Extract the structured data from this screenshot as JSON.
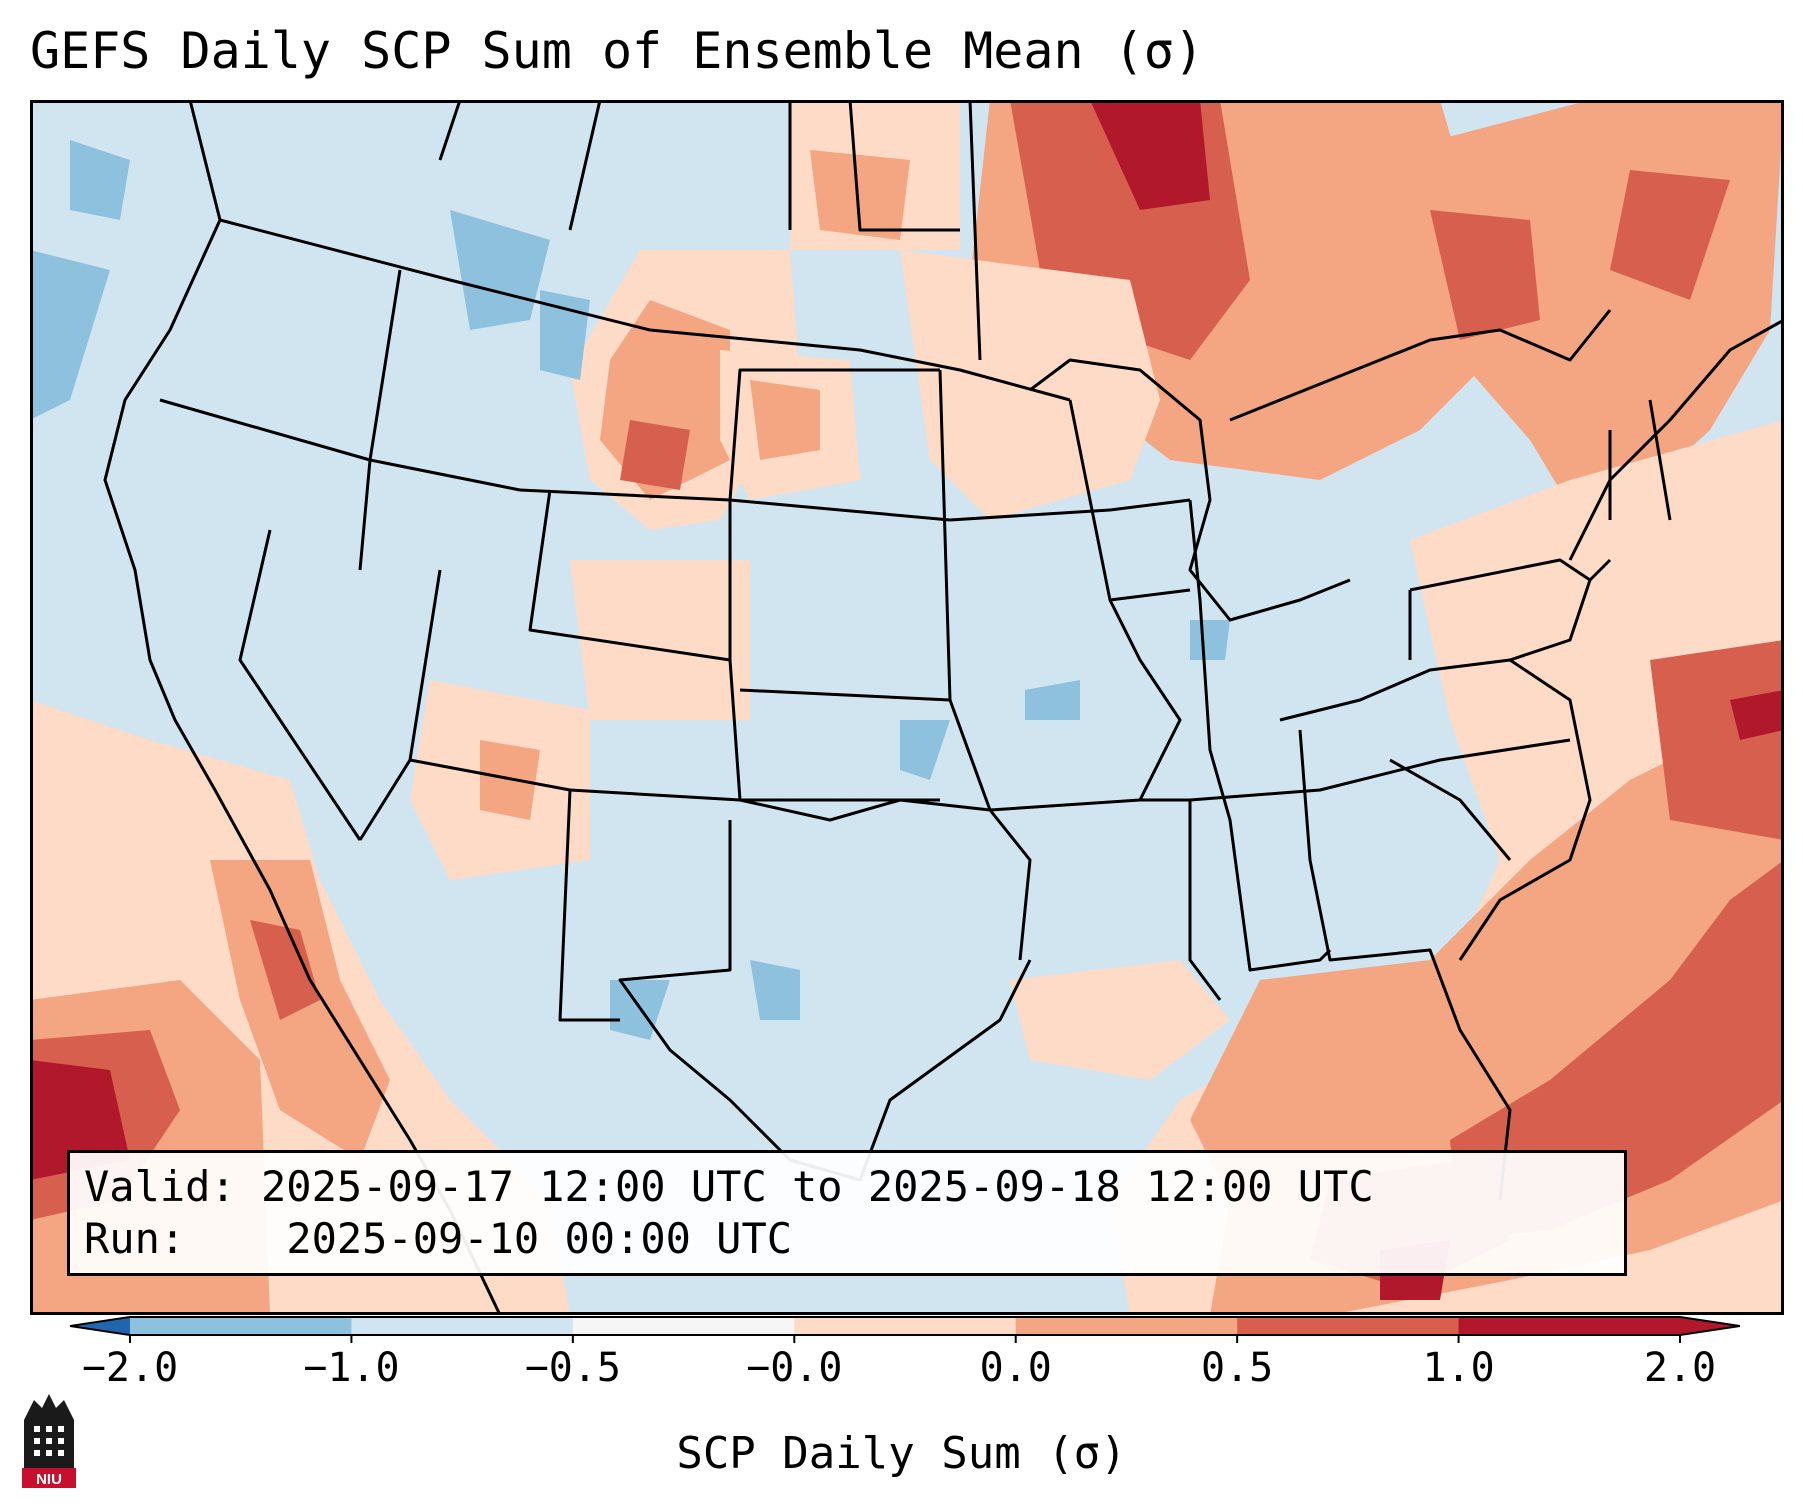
{
  "title": "GEFS Daily SCP Sum of Ensemble Mean (σ)",
  "info": {
    "valid_label": "Valid:",
    "valid_value": "2025-09-17 12:00 UTC to 2025-09-18 12:00 UTC",
    "run_label": "Run:",
    "run_value": "2025-09-10 00:00 UTC"
  },
  "colorbar": {
    "label": "SCP Daily Sum (σ)",
    "ticks": [
      "−2.0",
      "−1.0",
      "−0.5",
      "−0.0",
      "0.0",
      "0.5",
      "1.0",
      "2.0"
    ],
    "colors": [
      "#3b7fbe",
      "#8ec1de",
      "#d1e5f0",
      "#f6f6f6",
      "#fddbc7",
      "#f4a582",
      "#d6604d",
      "#b2182b"
    ],
    "under_color": "#2166ac",
    "over_color": "#b2182b"
  },
  "map": {
    "projection": "conus-lambert",
    "field": "SCP daily sum standardized anomaly",
    "background_color": "#d1e5f0"
  },
  "logo": {
    "text": "NIU"
  }
}
